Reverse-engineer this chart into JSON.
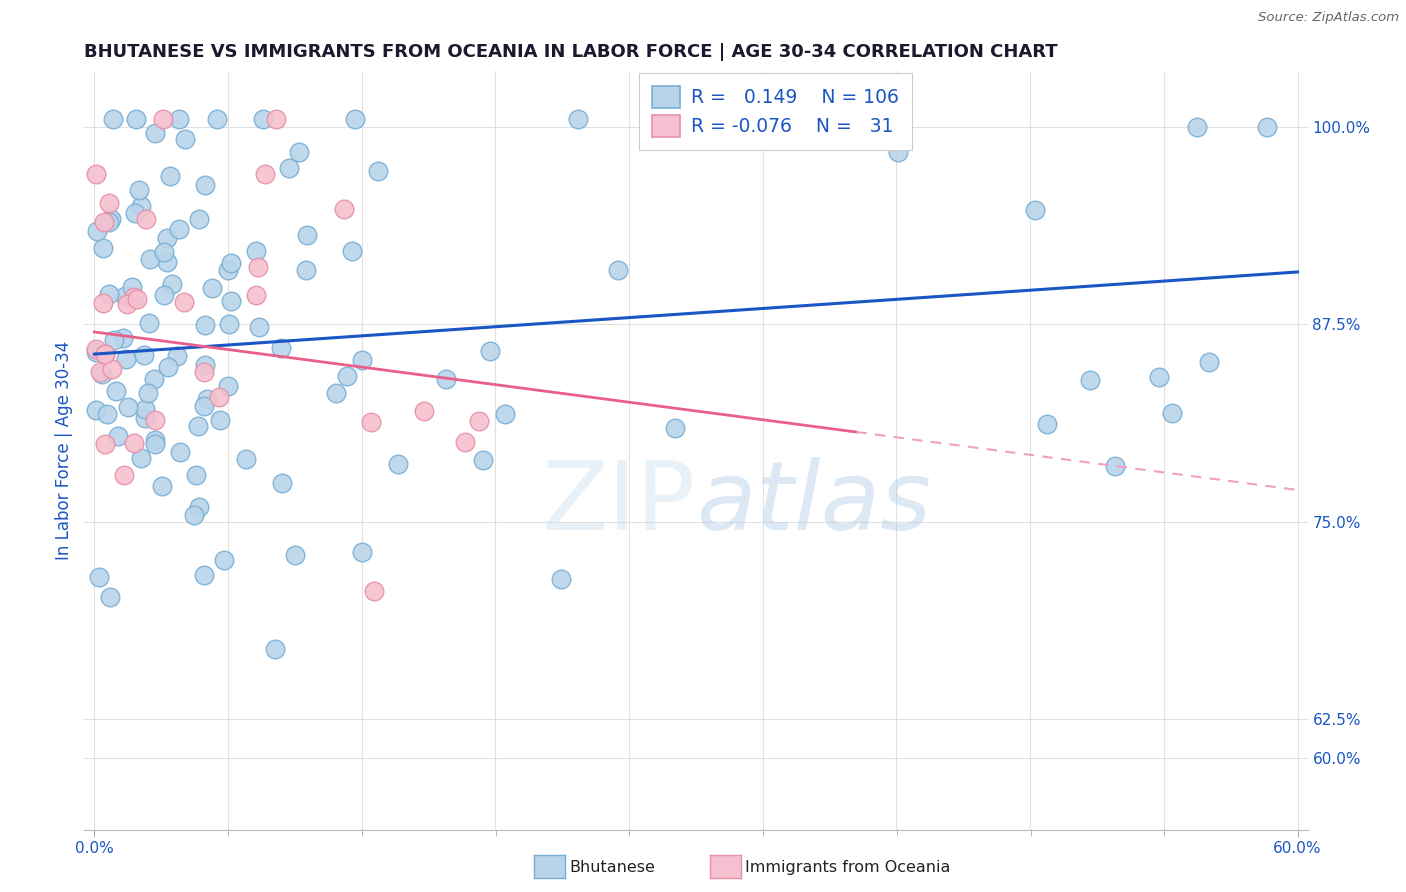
{
  "title": "BHUTANESE VS IMMIGRANTS FROM OCEANIA IN LABOR FORCE | AGE 30-34 CORRELATION CHART",
  "source": "Source: ZipAtlas.com",
  "ylabel": "In Labor Force | Age 30-34",
  "xlim": [
    -0.005,
    0.605
  ],
  "ylim": [
    0.555,
    1.035
  ],
  "yticks_right": [
    0.6,
    0.625,
    0.75,
    0.875,
    1.0
  ],
  "ytick_right_labels": [
    "60.0%",
    "62.5%",
    "75.0%",
    "87.5%",
    "100.0%"
  ],
  "blue_color": "#b8d4ea",
  "blue_edge_color": "#7aafd4",
  "pink_color": "#f5c0cf",
  "pink_edge_color": "#e890a8",
  "blue_line_color": "#1a56c4",
  "pink_line_color": "#e8608a",
  "pink_dash_color": "#f0a0bc",
  "R_blue": 0.149,
  "N_blue": 106,
  "R_pink": -0.076,
  "N_pink": 31,
  "background_color": "#ffffff",
  "grid_color": "#e0e0e0",
  "title_color": "#1a1a2e",
  "axis_label_color": "#1a56c4",
  "blue_intercept": 0.855,
  "blue_slope": 0.065,
  "pink_intercept": 0.872,
  "pink_slope": -0.12
}
